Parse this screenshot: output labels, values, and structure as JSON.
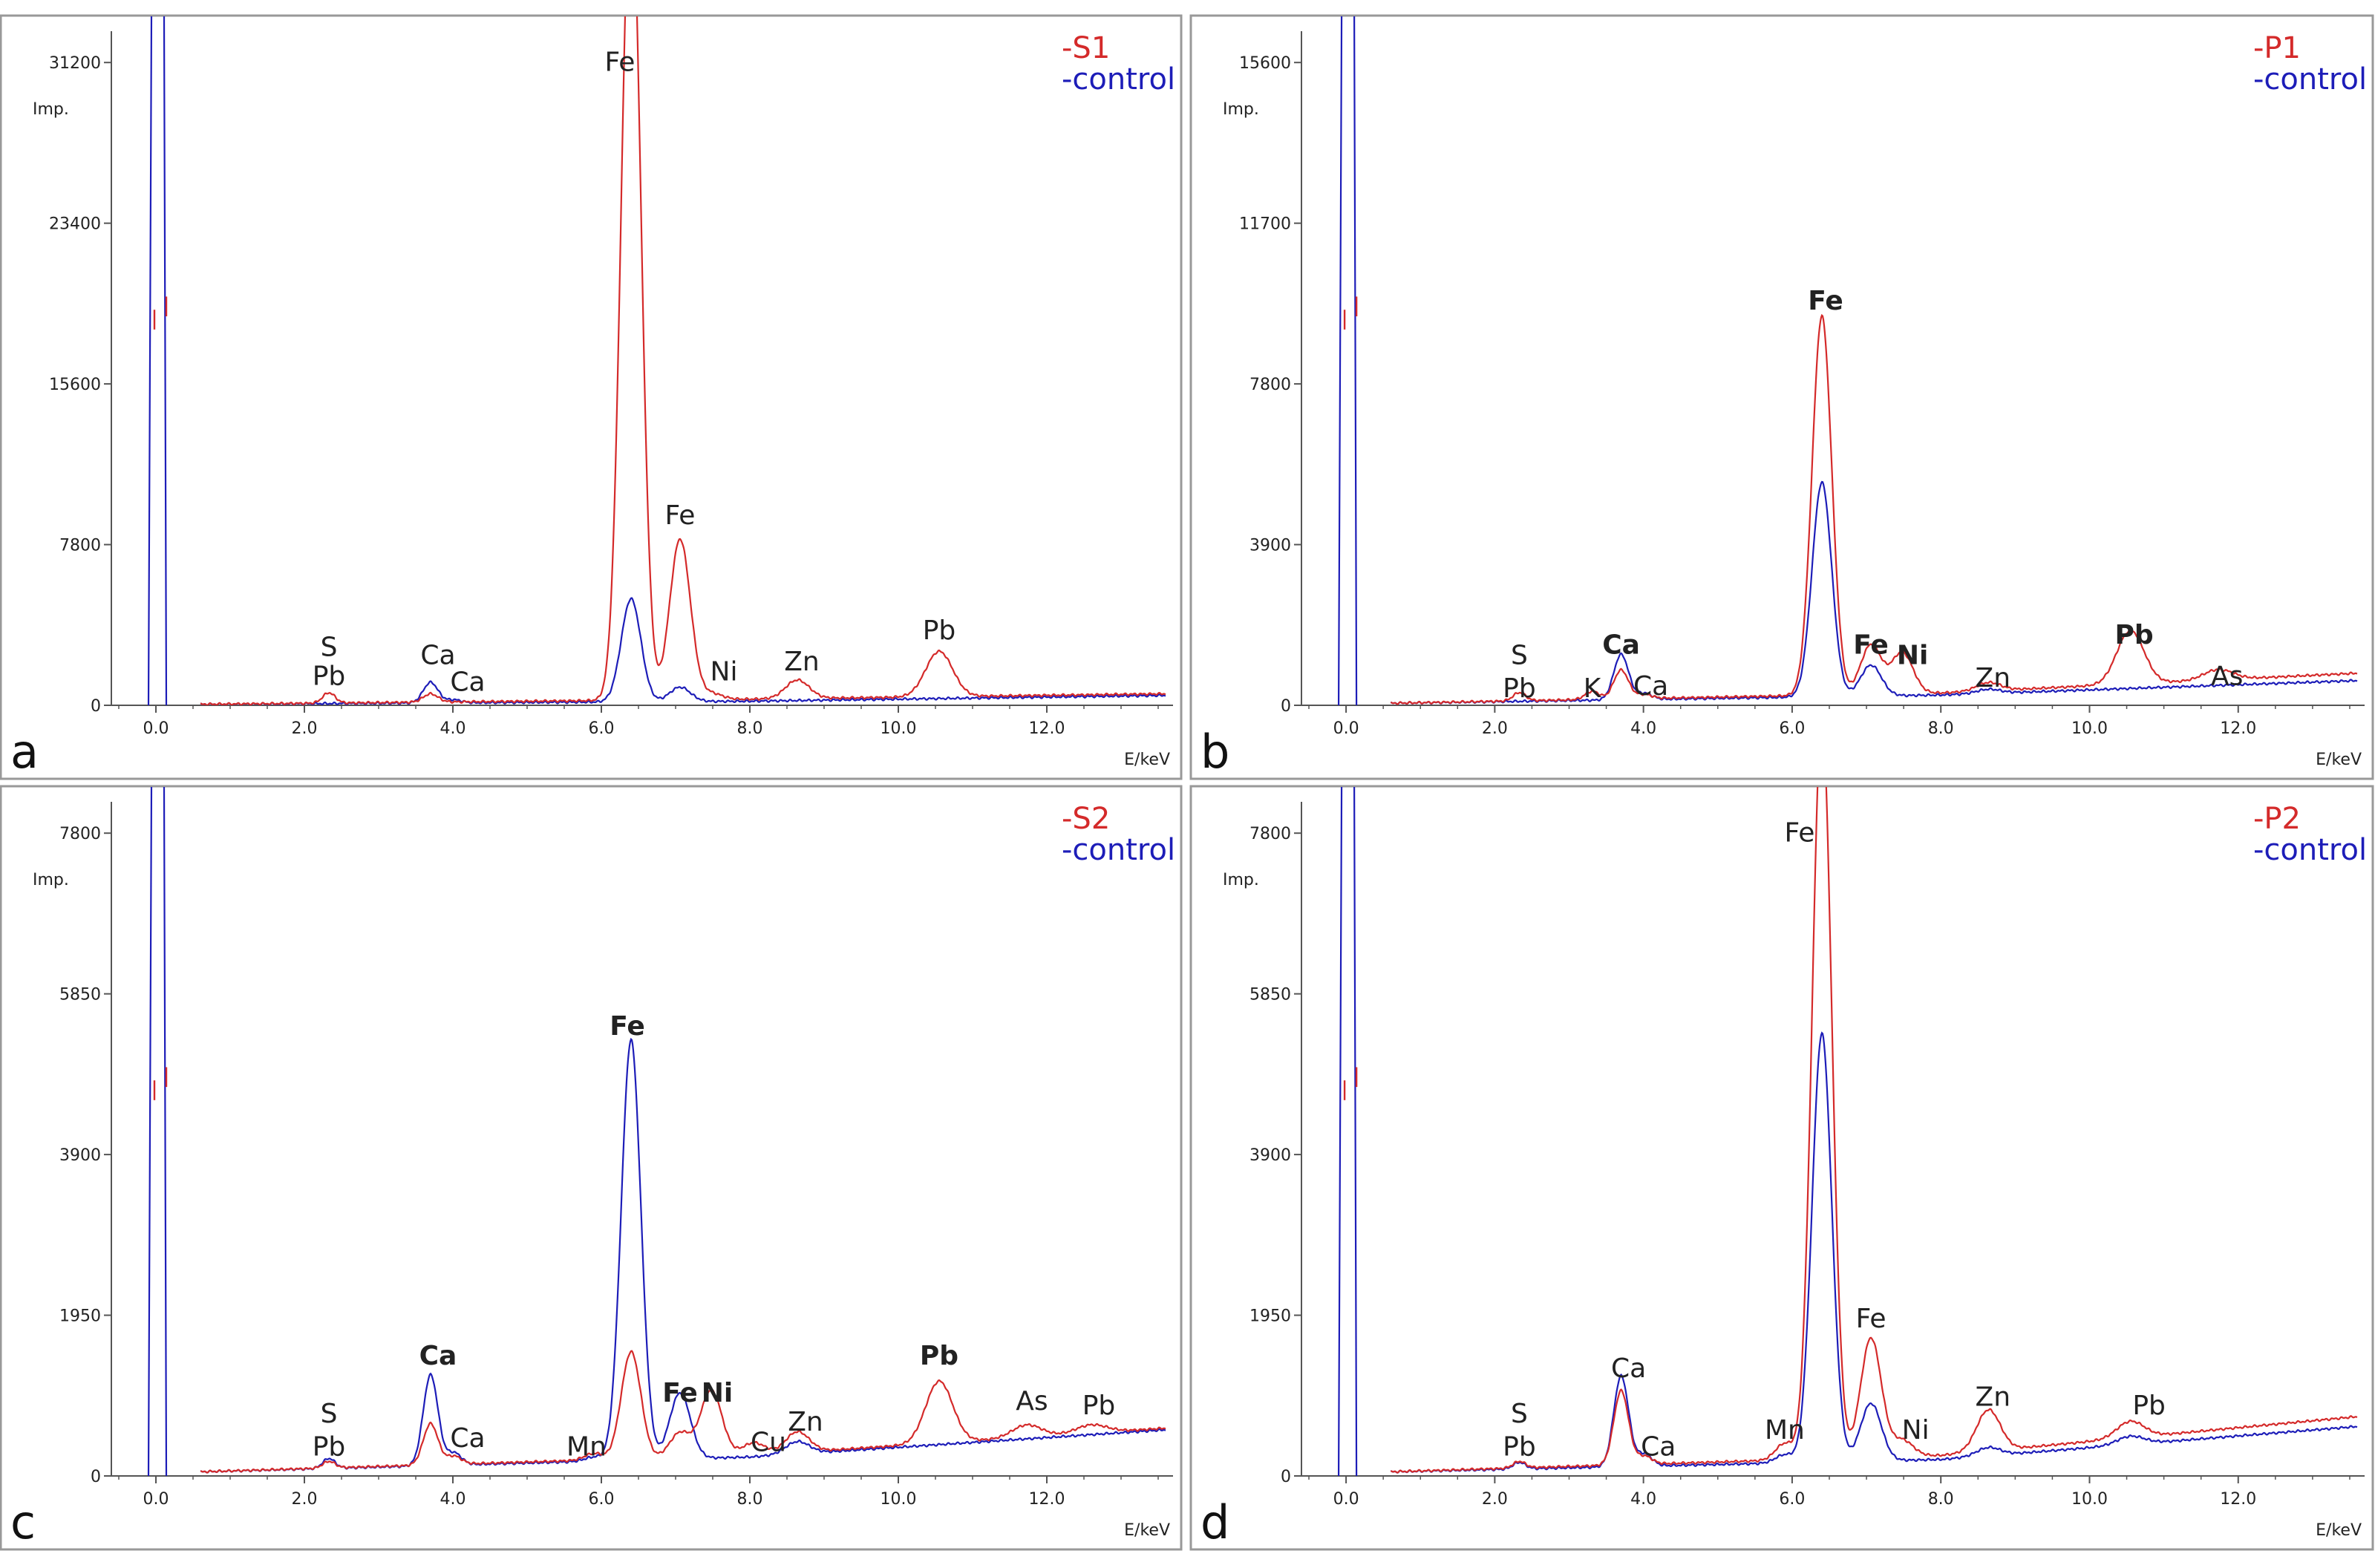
{
  "colors": {
    "sample": "#d42a2a",
    "control": "#1d1db8",
    "axis": "#555555",
    "frame": "#999999"
  },
  "chart_data": [
    {
      "panel": "a",
      "type": "line",
      "title": "",
      "xlabel": "E/keV",
      "ylabel": "Imp.",
      "xlim": [
        -0.6,
        13.7
      ],
      "ylim": [
        0,
        32000
      ],
      "xticks": [
        "0.0",
        "2.0",
        "4.0",
        "6.0",
        "8.0",
        "10.0",
        "12.0"
      ],
      "yticks": [
        "0",
        "7800",
        "15600",
        "23400",
        "31200"
      ],
      "legend": [
        "-S1",
        "-control"
      ],
      "legend_position": "top-right",
      "baseline": {
        "sample": [
          [
            0.6,
            50
          ],
          [
            8.0,
            300
          ],
          [
            13.6,
            560
          ]
        ],
        "control": [
          [
            0.6,
            50
          ],
          [
            8.0,
            200
          ],
          [
            13.6,
            480
          ]
        ]
      },
      "series": [
        {
          "name": "S1",
          "peaks": [
            [
              2.33,
              500
            ],
            [
              3.7,
              400
            ],
            [
              6.4,
              40000
            ],
            [
              7.06,
              7800
            ],
            [
              7.48,
              300
            ],
            [
              8.64,
              900
            ],
            [
              10.55,
              2200
            ]
          ]
        },
        {
          "name": "control",
          "peaks": [
            [
              3.7,
              1000
            ],
            [
              4.01,
              150
            ],
            [
              6.4,
              5000
            ],
            [
              7.06,
              700
            ]
          ]
        }
      ],
      "peak_labels": [
        {
          "text": "Fe",
          "x": 6.25,
          "y": 30800,
          "bold": false
        },
        {
          "text": "Fe",
          "x": 7.06,
          "y": 8800,
          "bold": false
        },
        {
          "text": "S",
          "x": 2.33,
          "y": 2400,
          "bold": false
        },
        {
          "text": "Pb",
          "x": 2.33,
          "y": 1000,
          "bold": false
        },
        {
          "text": "Ca",
          "x": 3.8,
          "y": 2000,
          "bold": false
        },
        {
          "text": "Ca",
          "x": 4.2,
          "y": 700,
          "bold": false
        },
        {
          "text": "Ni",
          "x": 7.65,
          "y": 1200,
          "bold": false
        },
        {
          "text": "Zn",
          "x": 8.7,
          "y": 1700,
          "bold": false
        },
        {
          "text": "Pb",
          "x": 10.55,
          "y": 3200,
          "bold": false
        }
      ]
    },
    {
      "panel": "b",
      "type": "line",
      "title": "",
      "xlabel": "E/keV",
      "ylabel": "Imp.",
      "xlim": [
        -0.6,
        13.7
      ],
      "ylim": [
        0,
        16000
      ],
      "xticks": [
        "0.0",
        "2.0",
        "4.0",
        "6.0",
        "8.0",
        "10.0",
        "12.0"
      ],
      "yticks": [
        "0",
        "3900",
        "7800",
        "11700",
        "15600"
      ],
      "legend": [
        "-P1",
        "-control"
      ],
      "legend_position": "top-right",
      "baseline": {
        "sample": [
          [
            0.6,
            50
          ],
          [
            8.0,
            300
          ],
          [
            13.6,
            780
          ]
        ],
        "control": [
          [
            0.6,
            50
          ],
          [
            8.0,
            250
          ],
          [
            13.6,
            600
          ]
        ]
      },
      "series": [
        {
          "name": "P1",
          "peaks": [
            [
              2.33,
              200
            ],
            [
              3.31,
              200
            ],
            [
              3.7,
              700
            ],
            [
              4.01,
              100
            ],
            [
              6.4,
              9200
            ],
            [
              7.06,
              1200
            ],
            [
              7.48,
              1000
            ],
            [
              8.64,
              200
            ],
            [
              10.55,
              1300
            ],
            [
              11.73,
              250
            ]
          ]
        },
        {
          "name": "control",
          "peaks": [
            [
              3.7,
              1100
            ],
            [
              4.01,
              150
            ],
            [
              6.4,
              5200
            ],
            [
              7.06,
              750
            ],
            [
              8.64,
              100
            ]
          ]
        }
      ],
      "peak_labels": [
        {
          "text": "Fe",
          "x": 6.45,
          "y": 9600,
          "bold": true
        },
        {
          "text": "S",
          "x": 2.33,
          "y": 1000,
          "bold": false
        },
        {
          "text": "Pb",
          "x": 2.33,
          "y": 200,
          "bold": false
        },
        {
          "text": "K",
          "x": 3.31,
          "y": 200,
          "bold": false
        },
        {
          "text": "Ca",
          "x": 3.7,
          "y": 1250,
          "bold": true
        },
        {
          "text": "Ca",
          "x": 4.1,
          "y": 250,
          "bold": false
        },
        {
          "text": "Fe",
          "x": 7.06,
          "y": 1250,
          "bold": true
        },
        {
          "text": "Ni",
          "x": 7.62,
          "y": 1000,
          "bold": true
        },
        {
          "text": "Zn",
          "x": 8.7,
          "y": 450,
          "bold": false
        },
        {
          "text": "Pb",
          "x": 10.6,
          "y": 1500,
          "bold": true
        },
        {
          "text": "As",
          "x": 11.85,
          "y": 500,
          "bold": false
        }
      ]
    },
    {
      "panel": "c",
      "type": "line",
      "title": "",
      "xlabel": "E/keV",
      "ylabel": "Imp.",
      "xlim": [
        -0.6,
        13.7
      ],
      "ylim": [
        0,
        8000
      ],
      "xticks": [
        "0.0",
        "2.0",
        "4.0",
        "6.0",
        "8.0",
        "10.0",
        "12.0"
      ],
      "yticks": [
        "0",
        "1950",
        "3900",
        "5850",
        "7800"
      ],
      "legend": [
        "-S2",
        "-control"
      ],
      "legend_position": "top-right",
      "baseline": {
        "sample": [
          [
            0.6,
            50
          ],
          [
            8.0,
            250
          ],
          [
            13.6,
            580
          ]
        ],
        "control": [
          [
            0.6,
            50
          ],
          [
            8.0,
            230
          ],
          [
            13.6,
            560
          ]
        ]
      },
      "series": [
        {
          "name": "S2",
          "peaks": [
            [
              2.33,
              80
            ],
            [
              3.7,
              500
            ],
            [
              4.01,
              100
            ],
            [
              5.9,
              80
            ],
            [
              6.4,
              1300
            ],
            [
              7.06,
              300
            ],
            [
              7.48,
              800
            ],
            [
              8.05,
              150
            ],
            [
              8.64,
              250
            ],
            [
              10.55,
              750
            ],
            [
              11.73,
              150
            ],
            [
              12.6,
              100
            ]
          ]
        },
        {
          "name": "control",
          "peaks": [
            [
              2.33,
              120
            ],
            [
              3.7,
              1100
            ],
            [
              4.01,
              150
            ],
            [
              5.9,
              50
            ],
            [
              6.4,
              5100
            ],
            [
              7.06,
              800
            ],
            [
              8.64,
              150
            ]
          ]
        }
      ],
      "peak_labels": [
        {
          "text": "Fe",
          "x": 6.35,
          "y": 5350,
          "bold": true
        },
        {
          "text": "Ca",
          "x": 3.8,
          "y": 1350,
          "bold": true
        },
        {
          "text": "S",
          "x": 2.33,
          "y": 650,
          "bold": false
        },
        {
          "text": "Pb",
          "x": 2.33,
          "y": 250,
          "bold": false
        },
        {
          "text": "Ca",
          "x": 4.2,
          "y": 350,
          "bold": false
        },
        {
          "text": "Mn",
          "x": 5.8,
          "y": 250,
          "bold": false
        },
        {
          "text": "Fe",
          "x": 7.06,
          "y": 900,
          "bold": true
        },
        {
          "text": "Ni",
          "x": 7.56,
          "y": 900,
          "bold": true
        },
        {
          "text": "Cu",
          "x": 8.25,
          "y": 300,
          "bold": false
        },
        {
          "text": "Zn",
          "x": 8.75,
          "y": 550,
          "bold": false
        },
        {
          "text": "Pb",
          "x": 10.55,
          "y": 1350,
          "bold": true
        },
        {
          "text": "As",
          "x": 11.8,
          "y": 800,
          "bold": false
        },
        {
          "text": "Pb",
          "x": 12.7,
          "y": 750,
          "bold": false
        }
      ]
    },
    {
      "panel": "d",
      "type": "line",
      "title": "",
      "xlabel": "E/keV",
      "ylabel": "Imp.",
      "xlim": [
        -0.6,
        13.7
      ],
      "ylim": [
        0,
        8000
      ],
      "xticks": [
        "0.0",
        "2.0",
        "4.0",
        "6.0",
        "8.0",
        "10.0",
        "12.0"
      ],
      "yticks": [
        "0",
        "1950",
        "3900",
        "5850",
        "7800"
      ],
      "legend": [
        "-P2",
        "-control"
      ],
      "legend_position": "top-right",
      "baseline": {
        "sample": [
          [
            0.6,
            50
          ],
          [
            8.0,
            250
          ],
          [
            13.6,
            720
          ]
        ],
        "control": [
          [
            0.6,
            50
          ],
          [
            8.0,
            200
          ],
          [
            13.6,
            600
          ]
        ]
      },
      "series": [
        {
          "name": "P2",
          "peaks": [
            [
              2.33,
              80
            ],
            [
              3.7,
              900
            ],
            [
              4.01,
              100
            ],
            [
              5.9,
              200
            ],
            [
              6.4,
              9000
            ],
            [
              7.06,
              1450
            ],
            [
              7.48,
              200
            ],
            [
              8.64,
              500
            ],
            [
              10.55,
              200
            ]
          ]
        },
        {
          "name": "control",
          "peaks": [
            [
              2.33,
              80
            ],
            [
              3.7,
              1100
            ],
            [
              4.01,
              150
            ],
            [
              5.9,
              100
            ],
            [
              6.4,
              5200
            ],
            [
              7.06,
              700
            ],
            [
              8.64,
              100
            ],
            [
              10.55,
              100
            ]
          ]
        }
      ],
      "peak_labels": [
        {
          "text": "Fe",
          "x": 6.1,
          "y": 7700,
          "bold": false
        },
        {
          "text": "Fe",
          "x": 7.06,
          "y": 1800,
          "bold": false
        },
        {
          "text": "S",
          "x": 2.33,
          "y": 650,
          "bold": false
        },
        {
          "text": "Pb",
          "x": 2.33,
          "y": 250,
          "bold": false
        },
        {
          "text": "Ca",
          "x": 3.8,
          "y": 1200,
          "bold": false
        },
        {
          "text": "Ca",
          "x": 4.2,
          "y": 250,
          "bold": false
        },
        {
          "text": "Mn",
          "x": 5.9,
          "y": 450,
          "bold": false
        },
        {
          "text": "Ni",
          "x": 7.66,
          "y": 450,
          "bold": false
        },
        {
          "text": "Zn",
          "x": 8.7,
          "y": 850,
          "bold": false
        },
        {
          "text": "Pb",
          "x": 10.8,
          "y": 750,
          "bold": false
        }
      ]
    }
  ]
}
